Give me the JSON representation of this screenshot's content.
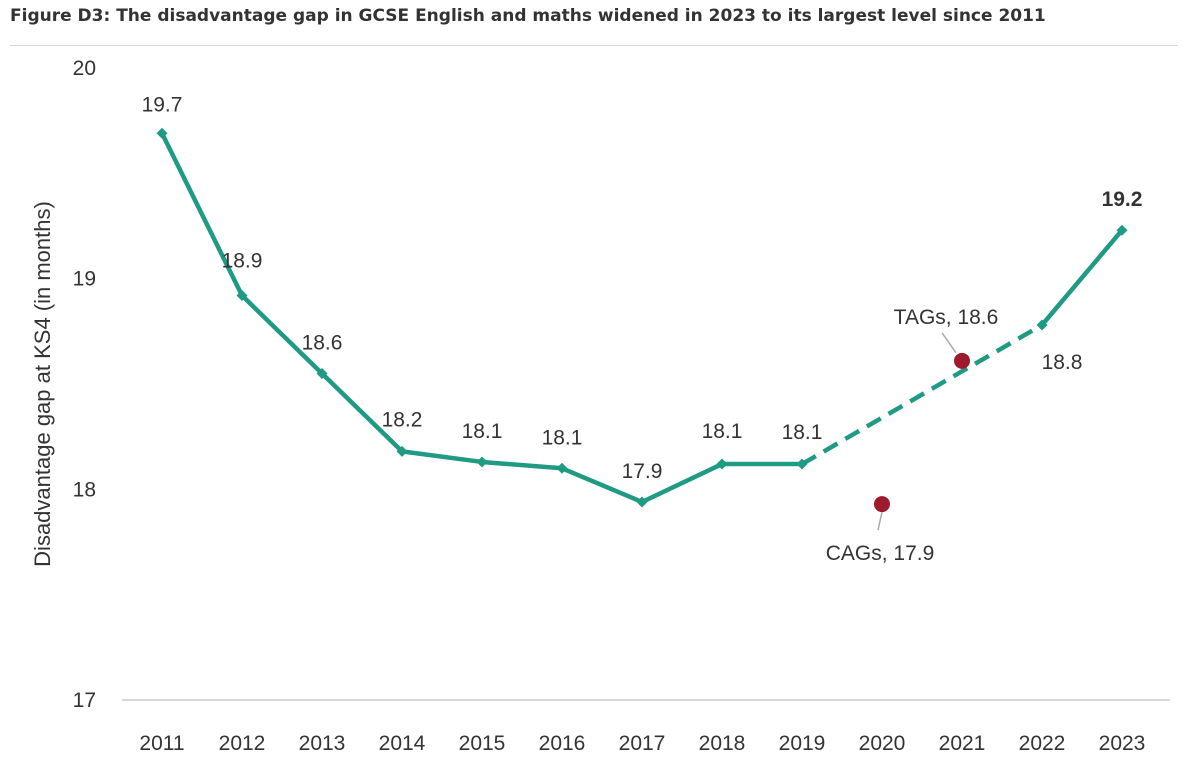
{
  "title": "Figure D3: The disadvantage gap in GCSE English and maths widened in 2023 to its largest level since 2011",
  "chart_data": {
    "type": "line",
    "title": "Figure D3: The disadvantage gap in GCSE English and maths widened in 2023 to its largest level since 2011",
    "xlabel": "",
    "ylabel": "Disadvantage gap at KS4 (in months)",
    "ylim": [
      17,
      20
    ],
    "yticks": [
      "17",
      "18",
      "19",
      "20"
    ],
    "categories": [
      "2011",
      "2012",
      "2013",
      "2014",
      "2015",
      "2016",
      "2017",
      "2018",
      "2019",
      "2020",
      "2021",
      "2022",
      "2023"
    ],
    "grid": false,
    "series": [
      {
        "values": [
          19.69,
          18.92,
          18.55,
          18.18,
          18.13,
          18.1,
          17.94,
          18.12,
          18.12,
          null,
          18.56,
          18.78,
          19.23
        ],
        "labels": [
          "19.7",
          "18.9",
          "18.6",
          "18.2",
          "18.1",
          "18.1",
          "17.9",
          "18.1",
          "18.1",
          "",
          "",
          "18.8",
          "19.2"
        ],
        "dashed_between": [
          "2019",
          "2022"
        ],
        "color": "#1f9a84"
      }
    ],
    "annotations": [
      {
        "x": "2020",
        "y": 17.93,
        "text": "CAGs, 17.9",
        "color": "#9e1b2e"
      },
      {
        "x": "2021",
        "y": 18.61,
        "text": "TAGs, 18.6",
        "color": "#9e1b2e"
      }
    ],
    "colors": {
      "line": "#1f9a84",
      "marker": "#9e1b2e",
      "axis": "#cccccc",
      "text": "#333333"
    }
  }
}
